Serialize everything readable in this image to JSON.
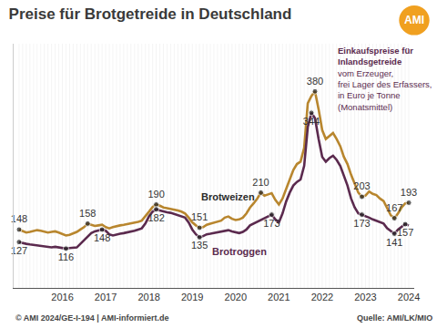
{
  "chart_data": {
    "type": "line",
    "title": "Preise für Brotgetreide in Deutschland",
    "logo": "AMI",
    "note": {
      "heading": [
        "Einkaufspreise für",
        "Inlandsgetreide"
      ],
      "text": [
        "vom Erzeuger,",
        "frei Lager des Erfassers,",
        "in Euro je Tonne",
        "(Monatsmittel)"
      ]
    },
    "footer": "© AMI 2024/GE-I-194 | AMI-informiert.de",
    "source": "Quelle: AMI/LK/MIO",
    "categories": [
      null,
      null,
      null,
      null,
      null,
      null,
      null,
      null,
      null,
      null,
      null,
      null,
      "2016",
      null,
      null,
      null,
      null,
      null,
      null,
      null,
      null,
      null,
      null,
      null,
      "2017",
      null,
      null,
      null,
      null,
      null,
      null,
      null,
      null,
      null,
      null,
      null,
      "2018",
      null,
      null,
      null,
      null,
      null,
      null,
      null,
      null,
      null,
      null,
      null,
      "2019",
      null,
      null,
      null,
      null,
      null,
      null,
      null,
      null,
      null,
      null,
      null,
      "2020",
      null,
      null,
      null,
      null,
      null,
      null,
      null,
      null,
      null,
      null,
      null,
      "2021",
      null,
      null,
      null,
      null,
      null,
      null,
      null,
      null,
      null,
      null,
      null,
      "2022",
      null,
      null,
      null,
      null,
      null,
      null,
      null,
      null,
      null,
      null,
      null,
      "2023",
      null,
      null,
      null,
      null,
      null,
      null,
      null,
      null,
      null,
      null,
      null,
      "2024"
    ],
    "series": [
      {
        "name": "Brotweizen",
        "color": "#b8862e",
        "values": [
          148,
          145,
          143,
          144,
          146,
          147,
          146,
          144,
          143,
          144,
          145,
          143,
          140,
          138,
          139,
          141,
          144,
          148,
          152,
          158,
          156,
          154,
          155,
          156,
          152,
          150,
          152,
          154,
          155,
          156,
          157,
          158,
          160,
          161,
          163,
          170,
          178,
          186,
          190,
          188,
          185,
          184,
          183,
          181,
          180,
          178,
          175,
          168,
          160,
          155,
          151,
          152,
          156,
          158,
          160,
          162,
          163,
          168,
          170,
          166,
          164,
          165,
          168,
          175,
          185,
          192,
          200,
          210,
          205,
          207,
          209,
          198,
          190,
          200,
          215,
          230,
          248,
          258,
          262,
          285,
          360,
          372,
          380,
          350,
          315,
          300,
          305,
          310,
          300,
          288,
          270,
          258,
          240,
          225,
          210,
          203,
          205,
          212,
          208,
          206,
          200,
          196,
          185,
          172,
          167,
          175,
          185,
          192,
          193
        ],
        "value_labels": [
          "148",
          null,
          null,
          null,
          null,
          null,
          null,
          null,
          null,
          null,
          null,
          null,
          null,
          null,
          null,
          null,
          null,
          null,
          null,
          "158",
          null,
          null,
          null,
          null,
          null,
          null,
          null,
          null,
          null,
          null,
          null,
          null,
          null,
          null,
          null,
          null,
          null,
          null,
          "190",
          null,
          null,
          null,
          null,
          null,
          null,
          null,
          null,
          null,
          null,
          null,
          "151",
          null,
          null,
          null,
          null,
          null,
          null,
          null,
          null,
          null,
          null,
          null,
          null,
          null,
          null,
          null,
          null,
          "210",
          null,
          null,
          null,
          null,
          null,
          null,
          null,
          null,
          null,
          null,
          null,
          null,
          null,
          null,
          "380",
          null,
          null,
          null,
          null,
          null,
          null,
          null,
          null,
          null,
          null,
          null,
          null,
          "203",
          null,
          null,
          null,
          null,
          null,
          null,
          null,
          null,
          "167",
          null,
          null,
          null,
          "193"
        ]
      },
      {
        "name": "Brotroggen",
        "color": "#5b2a4e",
        "values": [
          127,
          125,
          124,
          123,
          122,
          121,
          120,
          119,
          118,
          118,
          119,
          118,
          117,
          116,
          117,
          117,
          118,
          124,
          130,
          137,
          142,
          145,
          146,
          148,
          146,
          140,
          138,
          140,
          141,
          142,
          143,
          144,
          146,
          148,
          150,
          158,
          170,
          178,
          182,
          180,
          178,
          177,
          176,
          174,
          172,
          170,
          168,
          160,
          148,
          140,
          135,
          137,
          140,
          141,
          142,
          143,
          144,
          146,
          147,
          145,
          143,
          142,
          144,
          148,
          155,
          158,
          162,
          165,
          168,
          170,
          173,
          165,
          160,
          175,
          195,
          210,
          222,
          228,
          232,
          255,
          320,
          344,
          335,
          300,
          270,
          262,
          268,
          272,
          265,
          255,
          238,
          222,
          200,
          185,
          175,
          173,
          170,
          168,
          165,
          163,
          160,
          158,
          150,
          145,
          141,
          148,
          152,
          157,
          155
        ],
        "value_labels": [
          "127",
          null,
          null,
          null,
          null,
          null,
          null,
          null,
          null,
          null,
          null,
          null,
          null,
          "116",
          null,
          null,
          null,
          null,
          null,
          null,
          null,
          null,
          null,
          "148",
          null,
          null,
          null,
          null,
          null,
          null,
          null,
          null,
          null,
          null,
          null,
          null,
          null,
          null,
          "182",
          null,
          null,
          null,
          null,
          null,
          null,
          null,
          null,
          null,
          null,
          null,
          "135",
          null,
          null,
          null,
          null,
          null,
          null,
          null,
          null,
          null,
          null,
          null,
          null,
          null,
          null,
          null,
          null,
          null,
          null,
          null,
          "173",
          null,
          null,
          null,
          null,
          null,
          null,
          null,
          null,
          null,
          null,
          "344",
          null,
          null,
          null,
          null,
          null,
          null,
          null,
          null,
          null,
          null,
          null,
          null,
          null,
          "173",
          null,
          null,
          null,
          null,
          null,
          null,
          null,
          null,
          "141",
          null,
          null,
          "157",
          null
        ]
      }
    ],
    "ylim": [
      50,
      460
    ],
    "yticks": [],
    "tick_labels": "x",
    "grid": true,
    "data_labels": true
  }
}
